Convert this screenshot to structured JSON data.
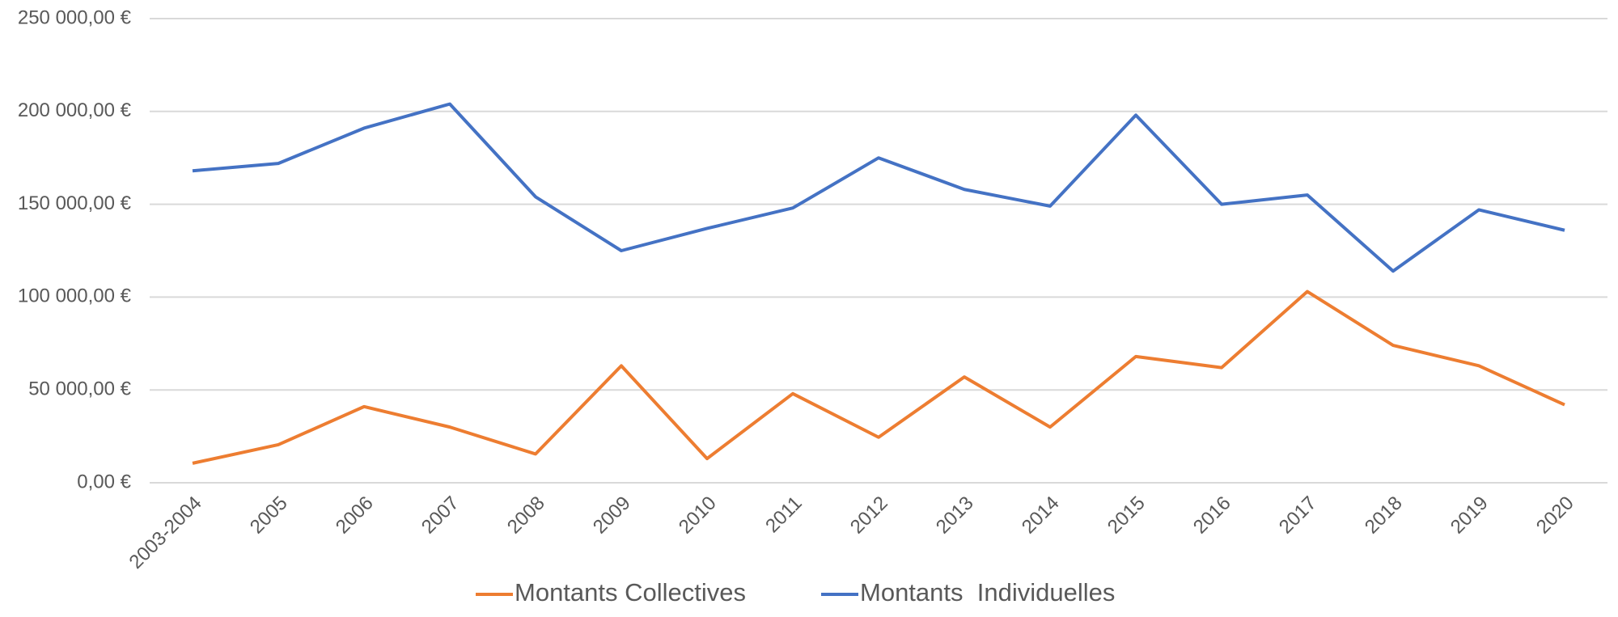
{
  "chart_data": {
    "type": "line",
    "categories": [
      "2003-2004",
      "2005",
      "2006",
      "2007",
      "2008",
      "2009",
      "2010",
      "2011",
      "2012",
      "2013",
      "2014",
      "2015",
      "2016",
      "2017",
      "2018",
      "2019",
      "2020"
    ],
    "series": [
      {
        "name": "Montants Collectives",
        "color": "#ed7d31",
        "values": [
          10500,
          20500,
          41000,
          30000,
          15500,
          63000,
          13000,
          48000,
          24500,
          57000,
          30000,
          68000,
          62000,
          103000,
          74000,
          63000,
          42000
        ]
      },
      {
        "name": "Montants  Individuelles",
        "color": "#4472c4",
        "values": [
          168000,
          172000,
          191000,
          204000,
          154000,
          125000,
          137000,
          148000,
          175000,
          158000,
          149000,
          198000,
          150000,
          155000,
          114000,
          147000,
          136000
        ]
      }
    ],
    "ylim": [
      0,
      250000
    ],
    "yticks": [
      {
        "value": 0,
        "label": "0,00 €"
      },
      {
        "value": 50000,
        "label": "50 000,00 €"
      },
      {
        "value": 100000,
        "label": "100 000,00 €"
      },
      {
        "value": 150000,
        "label": "150 000,00 €"
      },
      {
        "value": 200000,
        "label": "200 000,00 €"
      },
      {
        "value": 250000,
        "label": "250 000,00 €"
      }
    ],
    "grid": true
  }
}
